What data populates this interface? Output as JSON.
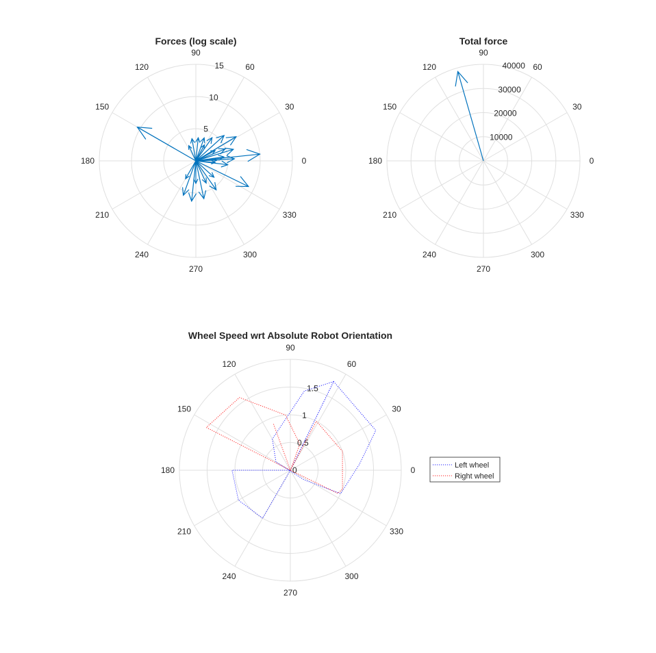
{
  "chart_data": [
    {
      "id": "forces",
      "type": "compass",
      "title": "Forces (log scale)",
      "theta_ticks": [
        "0",
        "30",
        "60",
        "90",
        "120",
        "150",
        "180",
        "210",
        "240",
        "270",
        "300",
        "330"
      ],
      "r_ticks": [
        {
          "value": 5,
          "label": "5"
        },
        {
          "value": 10,
          "label": "10"
        },
        {
          "value": 15,
          "label": "15"
        }
      ],
      "rlim": [
        0,
        15
      ],
      "grid": true,
      "color": "#0072bd",
      "vectors": [
        {
          "angle": 6,
          "r": 10.0
        },
        {
          "angle": 150,
          "r": 10.5
        },
        {
          "angle": 334,
          "r": 9.1
        },
        {
          "angle": 31,
          "r": 7.3
        },
        {
          "angle": 42,
          "r": 5.9
        },
        {
          "angle": 17,
          "r": 6.1
        },
        {
          "angle": 3,
          "r": 6.0
        },
        {
          "angle": 55,
          "r": 4.4
        },
        {
          "angle": 22,
          "r": 4.9
        },
        {
          "angle": 8,
          "r": 4.4
        },
        {
          "angle": 2,
          "r": 3.3
        },
        {
          "angle": 28,
          "r": 3.4
        },
        {
          "angle": 353,
          "r": 5.0
        },
        {
          "angle": 355,
          "r": 3.0
        },
        {
          "angle": 84,
          "r": 3.6
        },
        {
          "angle": 100,
          "r": 3.5
        },
        {
          "angle": 70,
          "r": 3.8
        },
        {
          "angle": 62,
          "r": 2.8
        },
        {
          "angle": 115,
          "r": 2.6
        },
        {
          "angle": 250,
          "r": 5.7
        },
        {
          "angle": 264,
          "r": 6.3
        },
        {
          "angle": 282,
          "r": 6.0
        },
        {
          "angle": 305,
          "r": 5.5
        },
        {
          "angle": 318,
          "r": 3.8
        },
        {
          "angle": 240,
          "r": 3.2
        },
        {
          "angle": 270,
          "r": 3.5
        },
        {
          "angle": 295,
          "r": 3.8
        }
      ]
    },
    {
      "id": "total",
      "type": "compass",
      "title": "Total force",
      "theta_ticks": [
        "0",
        "30",
        "60",
        "90",
        "120",
        "150",
        "180",
        "210",
        "240",
        "270",
        "300",
        "330"
      ],
      "r_ticks": [
        {
          "value": 10000,
          "label": "10000"
        },
        {
          "value": 20000,
          "label": "20000"
        },
        {
          "value": 30000,
          "label": "30000"
        },
        {
          "value": 40000,
          "label": "40000"
        }
      ],
      "rlim": [
        0,
        40000
      ],
      "grid": true,
      "color": "#0072bd",
      "vectors": [
        {
          "angle": 106,
          "r": 38500
        }
      ]
    },
    {
      "id": "wheels",
      "type": "polar-line",
      "title": "Wheel Speed wrt Absolute Robot Orientation",
      "theta_ticks": [
        "0",
        "30",
        "60",
        "90",
        "120",
        "150",
        "180",
        "210",
        "240",
        "270",
        "300",
        "330"
      ],
      "r_ticks": [
        {
          "value": 0,
          "label": "0"
        },
        {
          "value": 0.5,
          "label": "0.5"
        },
        {
          "value": 1,
          "label": "1"
        },
        {
          "value": 1.5,
          "label": "1.5"
        }
      ],
      "rlim": [
        0,
        2
      ],
      "grid": true,
      "legend_position": "east",
      "series": [
        {
          "name": "Left wheel",
          "color": "#2323ff",
          "points": [
            {
              "theta": 0,
              "r": 0
            },
            {
              "theta": 64,
              "r": 1.78
            },
            {
              "theta": 25,
              "r": 1.7
            },
            {
              "theta": 5,
              "r": 1.25
            },
            {
              "theta": 335,
              "r": 1.0
            },
            {
              "theta": 325,
              "r": 0.3
            },
            {
              "theta": 150,
              "r": 0.3
            },
            {
              "theta": 120,
              "r": 0.65
            },
            {
              "theta": 80,
              "r": 1.45
            },
            {
              "theta": 64,
              "r": 1.78
            },
            {
              "theta": 0,
              "r": 0
            },
            {
              "theta": 180,
              "r": 1.05
            },
            {
              "theta": 210,
              "r": 1.08
            },
            {
              "theta": 240,
              "r": 1.0
            },
            {
              "theta": 290,
              "r": 0.0
            }
          ]
        },
        {
          "name": "Right wheel",
          "color": "#ff2020",
          "points": [
            {
              "theta": 0,
              "r": 0
            },
            {
              "theta": 62,
              "r": 1.0
            },
            {
              "theta": 20,
              "r": 1.0
            },
            {
              "theta": 340,
              "r": 1.0
            },
            {
              "theta": 334,
              "r": 0.95
            },
            {
              "theta": 0,
              "r": 0
            },
            {
              "theta": 153,
              "r": 1.7
            },
            {
              "theta": 125,
              "r": 1.6
            },
            {
              "theta": 95,
              "r": 1.0
            },
            {
              "theta": 70,
              "r": 0.5
            },
            {
              "theta": 0,
              "r": 0
            },
            {
              "theta": 110,
              "r": 0.9
            }
          ]
        }
      ]
    }
  ]
}
